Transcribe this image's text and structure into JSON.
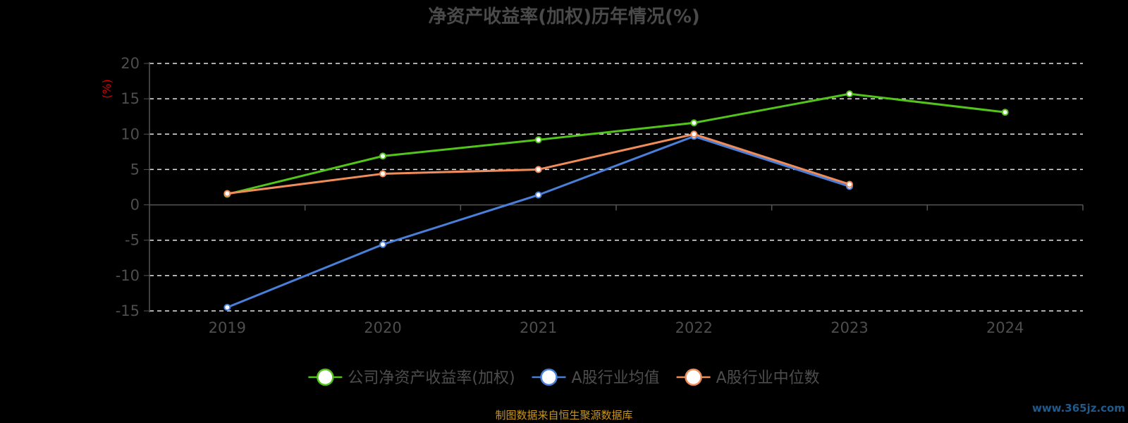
{
  "chart_data": {
    "type": "line",
    "title": "净资产收益率(加权)历年情况(%)",
    "ylabel": "(%)",
    "categories": [
      "2019",
      "2020",
      "2021",
      "2022",
      "2023",
      "2024"
    ],
    "yticks": [
      "20",
      "15",
      "10",
      "5",
      "0",
      "-5",
      "-10",
      "-15"
    ],
    "ylim": [
      -15,
      20
    ],
    "grid": true,
    "legend_position": "bottom",
    "series": [
      {
        "name": "公司净资产收益率(加权)",
        "color": "#52c41a",
        "values": [
          1.5,
          6.9,
          9.2,
          11.6,
          15.7,
          13.1
        ]
      },
      {
        "name": "A股行业均值",
        "color": "#4a7fd9",
        "values": [
          -14.5,
          -5.6,
          1.4,
          9.7,
          2.6,
          null
        ]
      },
      {
        "name": "A股行业中位数",
        "color": "#f08c5a",
        "values": [
          1.6,
          4.4,
          5.0,
          10.0,
          2.9,
          null
        ]
      }
    ]
  },
  "source_note": "制图数据来自恒生聚源数据库",
  "watermark": "www.365jz.com"
}
